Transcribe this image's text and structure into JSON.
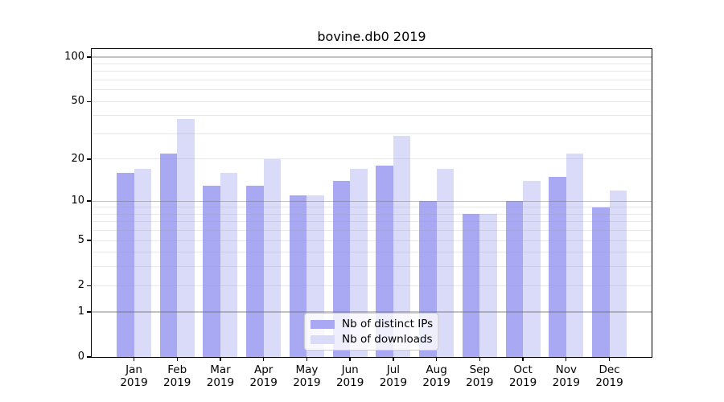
{
  "title": "bovine.db0 2019",
  "chart_data": {
    "type": "bar",
    "title": "bovine.db0 2019",
    "categories": [
      "Jan",
      "Feb",
      "Mar",
      "Apr",
      "May",
      "Jun",
      "Jul",
      "Aug",
      "Sep",
      "Oct",
      "Nov",
      "Dec"
    ],
    "category_year": "2019",
    "series": [
      {
        "name": "Nb of distinct IPs",
        "color": "#a8a8f3",
        "values": [
          16,
          22,
          13,
          13,
          11,
          14,
          18,
          10,
          8,
          10,
          15,
          9
        ]
      },
      {
        "name": "Nb of downloads",
        "color": "#dadaf9",
        "values": [
          17,
          38,
          16,
          20,
          11,
          17,
          29,
          17,
          8,
          14,
          22,
          12
        ]
      }
    ],
    "yscale": "log1p",
    "ylim": [
      0,
      113
    ],
    "y_tick_labels": [
      0,
      1,
      2,
      5,
      10,
      20,
      50,
      100
    ],
    "y_major_gridlines": [
      1,
      10,
      100
    ],
    "y_minor_gridlines": [
      2,
      3,
      4,
      5,
      6,
      7,
      8,
      9,
      20,
      30,
      40,
      50,
      60,
      70,
      80,
      90
    ],
    "grid": "both",
    "legend_position": "lower center",
    "xlabel": "",
    "ylabel": ""
  }
}
